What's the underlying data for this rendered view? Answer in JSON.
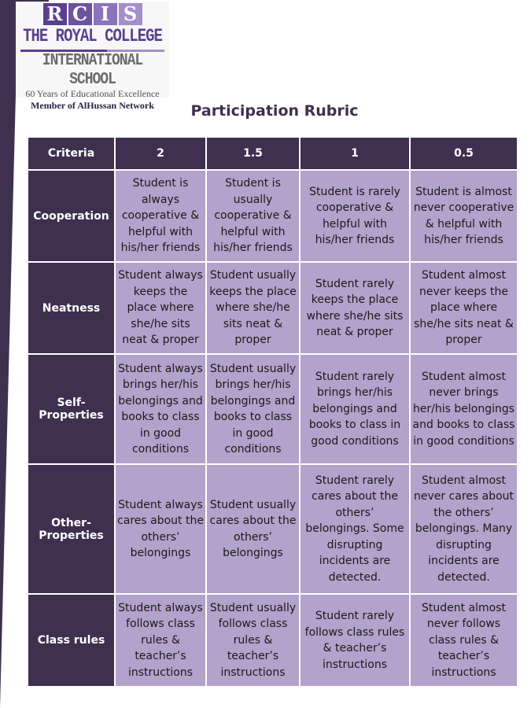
{
  "logo": {
    "letters": [
      "R",
      "C",
      "I",
      "S"
    ],
    "letter_colors": [
      "#5b3f8e",
      "#6e52a0",
      "#8c74bb",
      "#a58fcb"
    ],
    "line1": "THE ROYAL COLLEGE",
    "line2": "INTERNATIONAL SCHOOL",
    "line3": "60 Years of Educational Excellence",
    "line4": "Member of AlHussan Network"
  },
  "title": "Participation Rubric",
  "colors": {
    "dark": "#3f3050",
    "cell": "#b3a2cb"
  },
  "table": {
    "headers": [
      "Criteria",
      "2",
      "1.5",
      "1",
      "0.5"
    ],
    "rows": [
      {
        "criteria": "Cooperation",
        "cells": [
          "Student is always cooperative & helpful with his/her friends",
          "Student is usually cooperative & helpful with his/her friends",
          "Student is rarely cooperative & helpful with his/her friends",
          "Student is almost never cooperative & helpful with his/her friends"
        ]
      },
      {
        "criteria": "Neatness",
        "cells": [
          "Student always keeps the place where she/he sits neat & proper",
          "Student usually keeps the place where she/he sits neat & proper",
          "Student rarely keeps the place where she/he sits neat & proper",
          "Student almost never keeps the place where she/he sits neat & proper"
        ]
      },
      {
        "criteria": "Self-Properties",
        "cells": [
          "Student always brings her/his belongings and books to class in good conditions",
          "Student usually brings her/his belongings and books to class in good conditions",
          "Student rarely brings her/his belongings and books to class in good conditions",
          "Student almost never brings her/his belongings and books to class in good conditions"
        ]
      },
      {
        "criteria": "Other-Properties",
        "cells": [
          "Student always cares about the others’ belongings",
          "Student usually cares about the others’ belongings",
          "Student rarely cares about the others’ belongings. Some disrupting incidents are detected.",
          "Student almost never cares about the others’ belongings. Many disrupting incidents are detected."
        ]
      },
      {
        "criteria": "Class rules",
        "cells": [
          "Student always follows class rules & teacher’s instructions",
          "Student usually follows class rules & teacher’s instructions",
          "Student rarely follows class rules & teacher’s instructions",
          "Student almost never follows class rules & teacher’s instructions"
        ]
      }
    ]
  }
}
